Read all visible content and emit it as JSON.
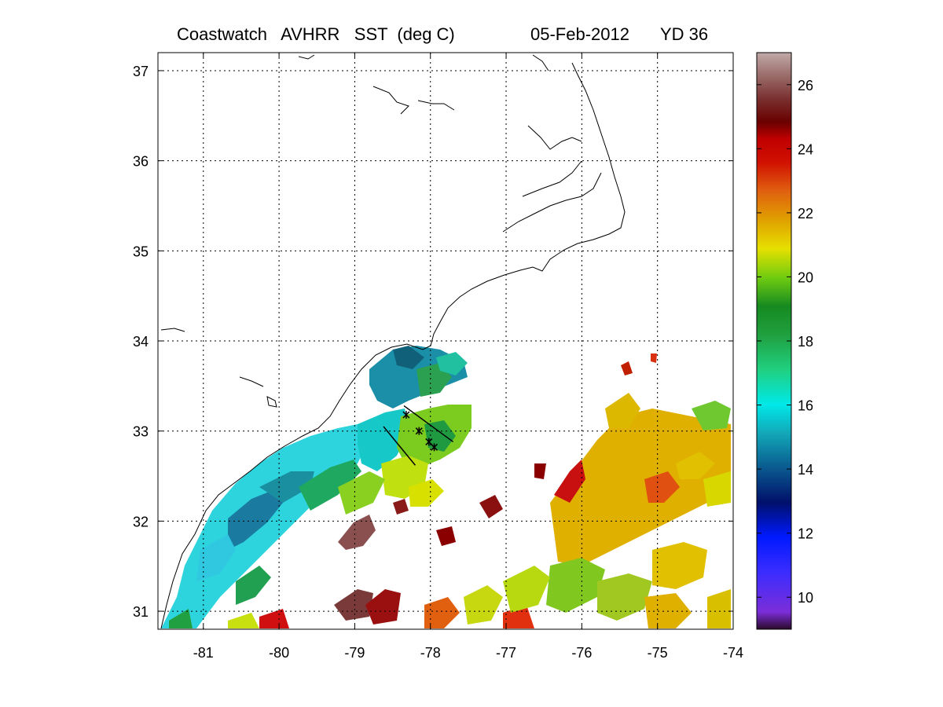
{
  "title": {
    "product": "Coastwatch   AVHRR   SST  (deg C)",
    "date": "05-Feb-2012",
    "yearday": "YD 36"
  },
  "map": {
    "lon_range": [
      -81.6,
      -74
    ],
    "lat_range": [
      30.8,
      37.2
    ],
    "lon_ticks": [
      -81,
      -80,
      -79,
      -78,
      -77,
      -76,
      -75,
      -74
    ],
    "lat_ticks": [
      31,
      32,
      33,
      34,
      35,
      36,
      37
    ],
    "lon_tick_labels": [
      "-81",
      "-80",
      "-79",
      "-78",
      "-77",
      "-76",
      "-75",
      "-74"
    ],
    "lat_tick_labels": [
      "31",
      "32",
      "33",
      "34",
      "35",
      "36",
      "37"
    ],
    "grid": true,
    "transect_lines": [
      [
        [
          -78.35,
          33.28
        ],
        [
          -77.7,
          32.88
        ]
      ],
      [
        [
          -78.62,
          33.05
        ],
        [
          -78.2,
          32.62
        ]
      ]
    ],
    "stations": [
      [
        -78.32,
        33.18
      ],
      [
        -78.15,
        33.0
      ],
      [
        -78.02,
        32.88
      ],
      [
        -77.95,
        32.82
      ]
    ]
  },
  "colorbar": {
    "range": [
      9,
      27
    ],
    "ticks": [
      10,
      12,
      14,
      16,
      18,
      20,
      22,
      24,
      26
    ],
    "tick_labels": [
      "10",
      "12",
      "14",
      "16",
      "18",
      "20",
      "22",
      "24",
      "26"
    ]
  },
  "colors": {
    "cold": "#7b2ed8",
    "mid_cold": "#0019ff",
    "cyan": "#00e8e8",
    "green": "#20a030",
    "yellow": "#e6e000",
    "orange": "#e06010",
    "red": "#c00000",
    "dark_red": "#6a0000",
    "brown_gray": "#b39a98"
  }
}
